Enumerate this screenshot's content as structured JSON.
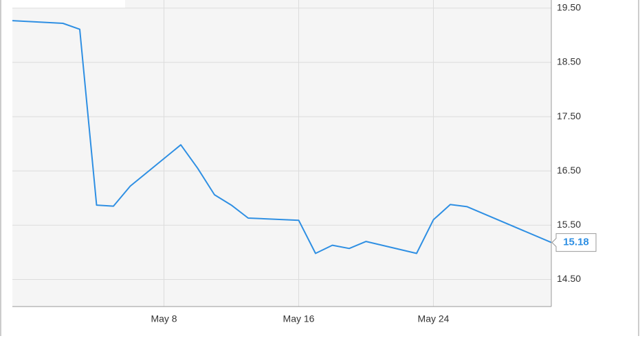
{
  "chart_data": {
    "type": "line",
    "x": [
      "Apr 29",
      "May 2",
      "May 3",
      "May 4",
      "May 5",
      "May 6",
      "May 9",
      "May 10",
      "May 11",
      "May 12",
      "May 13",
      "May 16",
      "May 17",
      "May 18",
      "May 19",
      "May 20",
      "May 23",
      "May 24",
      "May 25",
      "May 26",
      "May 31"
    ],
    "series": [
      {
        "color": "#2e8fe3",
        "values": [
          19.27,
          19.22,
          19.11,
          15.87,
          15.85,
          16.22,
          16.98,
          16.55,
          16.06,
          15.87,
          15.63,
          15.59,
          14.98,
          15.13,
          15.07,
          15.2,
          14.98,
          15.6,
          15.88,
          15.84,
          15.18
        ]
      }
    ],
    "xlim": [
      "Apr 29",
      "May 31"
    ],
    "xticks": [
      "May 8",
      "May 16",
      "May 24"
    ],
    "ylim": [
      14.0,
      19.65
    ],
    "yticks": [
      {
        "value": 14.5,
        "label": "14.50"
      },
      {
        "value": 15.5,
        "label": "15.50"
      },
      {
        "value": 16.5,
        "label": "16.50"
      },
      {
        "value": 17.5,
        "label": "17.50"
      },
      {
        "value": 18.5,
        "label": "18.50"
      },
      {
        "value": 19.5,
        "label": "19.50"
      }
    ],
    "grid": true
  }
}
